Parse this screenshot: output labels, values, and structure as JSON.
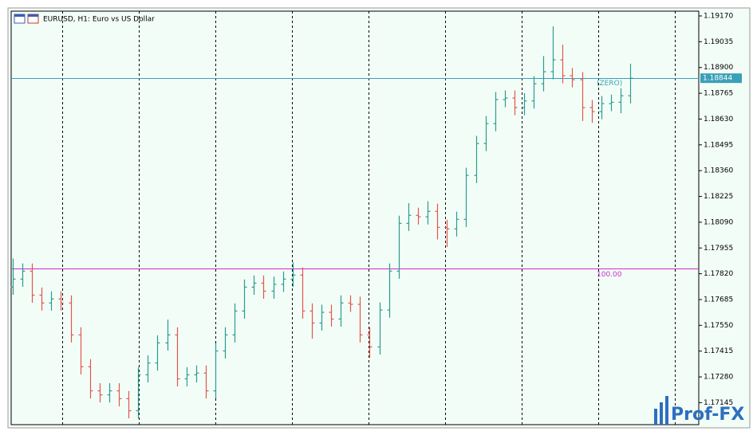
{
  "chart_data": {
    "type": "ohlc",
    "title": "EURUSD, H1:  Euro vs US Dollar",
    "watermark": "Prof-FX",
    "up_color": "#2a9d8f",
    "down_color": "#e2574c",
    "ylim": [
      1.1703,
      1.19195
    ],
    "yticks": [
      {
        "value": 1.1917,
        "label": "1.19170"
      },
      {
        "value": 1.19035,
        "label": "1.19035"
      },
      {
        "value": 1.189,
        "label": "1.18900"
      },
      {
        "value": 1.18765,
        "label": "1.18765"
      },
      {
        "value": 1.1863,
        "label": "1.18630"
      },
      {
        "value": 1.18495,
        "label": "1.18495"
      },
      {
        "value": 1.1836,
        "label": "1.18360"
      },
      {
        "value": 1.18225,
        "label": "1.18225"
      },
      {
        "value": 1.1809,
        "label": "1.18090"
      },
      {
        "value": 1.17955,
        "label": "1.17955"
      },
      {
        "value": 1.1782,
        "label": "1.17820"
      },
      {
        "value": 1.17685,
        "label": "1.17685"
      },
      {
        "value": 1.1755,
        "label": "1.17550"
      },
      {
        "value": 1.17415,
        "label": "1.17415"
      },
      {
        "value": 1.1728,
        "label": "1.17280"
      },
      {
        "value": 1.17145,
        "label": "1.17145"
      }
    ],
    "levels": [
      {
        "value": 1.18844,
        "label": "(ZERO)",
        "color": "#3a9fb8"
      },
      {
        "value": 1.17846,
        "label": "100.00",
        "color": "#c72fc7"
      }
    ],
    "open": [
      1.1775,
      1.17792,
      1.17834,
      1.17708,
      1.17667,
      1.17688,
      1.17667,
      1.175,
      1.17333,
      1.17207,
      1.17186,
      1.17207,
      1.17166,
      1.17103,
      1.17291,
      1.17353,
      1.17458,
      1.175,
      1.1727,
      1.17291,
      1.173,
      1.17207,
      1.17416,
      1.175,
      1.17625,
      1.1775,
      1.17771,
      1.17729,
      1.17765,
      1.17792,
      1.17813,
      1.17625,
      1.17562,
      1.17618,
      1.17583,
      1.17667,
      1.1766,
      1.175,
      1.17437,
      1.1763,
      1.17834,
      1.18084,
      1.18126,
      1.18118,
      1.18147,
      1.18063,
      1.18055,
      1.18105,
      1.18335,
      1.18502,
      1.18606,
      1.18732,
      1.1874,
      1.1869,
      1.18725,
      1.18815,
      1.18878,
      1.1894,
      1.18857,
      1.18836,
      1.1869,
      1.18669,
      1.18711,
      1.18718,
      1.18752
    ],
    "high": [
      1.179,
      1.17874,
      1.17874,
      1.17748,
      1.17728,
      1.17728,
      1.17707,
      1.1754,
      1.17373,
      1.17247,
      1.17247,
      1.17247,
      1.17206,
      1.17331,
      1.17393,
      1.17498,
      1.1758,
      1.1754,
      1.17331,
      1.1734,
      1.1734,
      1.17456,
      1.1754,
      1.17665,
      1.1779,
      1.17811,
      1.17811,
      1.17805,
      1.17832,
      1.1788,
      1.17853,
      1.17665,
      1.17658,
      1.17658,
      1.17707,
      1.17707,
      1.177,
      1.1754,
      1.1767,
      1.17874,
      1.18124,
      1.1819,
      1.18166,
      1.182,
      1.18187,
      1.18103,
      1.18145,
      1.18375,
      1.18542,
      1.18646,
      1.18772,
      1.1878,
      1.1878,
      1.18765,
      1.18855,
      1.1896,
      1.19115,
      1.1902,
      1.18897,
      1.18876,
      1.1873,
      1.18751,
      1.18758,
      1.18792,
      1.1892
    ],
    "low": [
      1.1771,
      1.17752,
      1.17668,
      1.17627,
      1.17627,
      1.17627,
      1.1746,
      1.17293,
      1.17167,
      1.17146,
      1.17146,
      1.17126,
      1.17063,
      1.17063,
      1.17251,
      1.17313,
      1.17418,
      1.1723,
      1.1723,
      1.17251,
      1.17167,
      1.17167,
      1.17376,
      1.1746,
      1.17585,
      1.1771,
      1.17689,
      1.17689,
      1.17725,
      1.17752,
      1.17585,
      1.1748,
      1.17522,
      1.17543,
      1.17543,
      1.1762,
      1.1746,
      1.1738,
      1.17397,
      1.1759,
      1.17794,
      1.18044,
      1.18078,
      1.18078,
      1.18,
      1.1796,
      1.18015,
      1.18065,
      1.18295,
      1.18462,
      1.18566,
      1.18692,
      1.1865,
      1.1865,
      1.18685,
      1.18775,
      1.18838,
      1.18817,
      1.18796,
      1.1862,
      1.1861,
      1.18629,
      1.18671,
      1.1866,
      1.18712
    ],
    "close": [
      1.17792,
      1.17834,
      1.17708,
      1.17667,
      1.17688,
      1.17667,
      1.175,
      1.17333,
      1.17207,
      1.17186,
      1.17207,
      1.17166,
      1.17103,
      1.17291,
      1.17353,
      1.17458,
      1.175,
      1.1727,
      1.17291,
      1.173,
      1.17207,
      1.17416,
      1.175,
      1.17625,
      1.1775,
      1.17771,
      1.17729,
      1.17765,
      1.17792,
      1.17813,
      1.17625,
      1.17562,
      1.17618,
      1.17583,
      1.17667,
      1.1766,
      1.175,
      1.17437,
      1.1763,
      1.17834,
      1.18084,
      1.18126,
      1.18118,
      1.18147,
      1.18063,
      1.18055,
      1.18105,
      1.18335,
      1.18502,
      1.18606,
      1.18732,
      1.1874,
      1.1869,
      1.18725,
      1.18815,
      1.18878,
      1.1894,
      1.18857,
      1.18836,
      1.1869,
      1.18669,
      1.18711,
      1.18718,
      1.18752,
      1.18844
    ]
  }
}
